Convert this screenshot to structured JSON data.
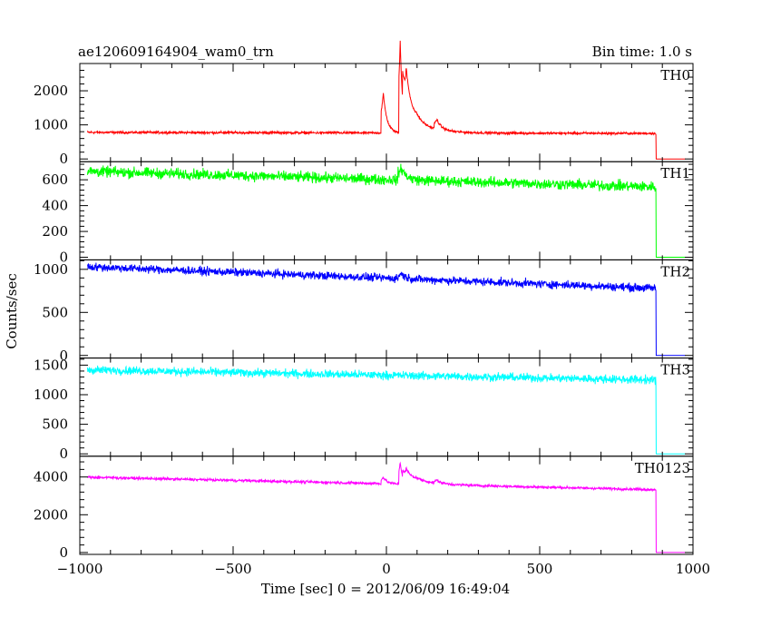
{
  "header": {
    "title": "ae120609164904_wam0_trn",
    "bin_time": "Bin time: 1.0 s"
  },
  "chart_data": {
    "type": "line",
    "xlabel": "Time [sec] 0 = 2012/06/09 16:49:04",
    "ylabel": "Counts/sec",
    "xlim": [
      -1000,
      1000
    ],
    "x_ticks": [
      -1000,
      -500,
      0,
      500,
      1000
    ],
    "x_tick_labels": [
      "−1000",
      "−500",
      "0",
      "500",
      "1000"
    ],
    "panels": [
      {
        "name": "TH0",
        "color": "#ff0000",
        "ylim": [
          -80,
          2800
        ],
        "y_ticks": [
          0,
          1000,
          2000
        ],
        "y_tick_labels": [
          "0",
          "1000",
          "2000"
        ],
        "baseline_start": 780,
        "baseline_end": 750,
        "noise": 30,
        "burst": [
          [
            -10,
            1150,
            12
          ],
          [
            45,
            2700,
            8
          ],
          [
            65,
            1500,
            20
          ],
          [
            100,
            300,
            60
          ],
          [
            165,
            280,
            15
          ]
        ],
        "cutoff": 880
      },
      {
        "name": "TH1",
        "color": "#00ff00",
        "ylim": [
          -20,
          740
        ],
        "y_ticks": [
          0,
          200,
          400,
          600
        ],
        "y_tick_labels": [
          "0",
          "200",
          "400",
          "600"
        ],
        "baseline_start": 665,
        "baseline_end": 545,
        "noise": 35,
        "burst": [
          [
            48,
            90,
            18
          ]
        ],
        "cutoff": 880
      },
      {
        "name": "TH2",
        "color": "#0000ff",
        "ylim": [
          -30,
          1110
        ],
        "y_ticks": [
          0,
          500,
          1000
        ],
        "y_tick_labels": [
          "0",
          "500",
          "1000"
        ],
        "baseline_start": 1030,
        "baseline_end": 780,
        "noise": 40,
        "burst": [
          [
            48,
            60,
            15
          ]
        ],
        "cutoff": 880
      },
      {
        "name": "TH3",
        "color": "#00ffff",
        "ylim": [
          -40,
          1620
        ],
        "y_ticks": [
          0,
          500,
          1000,
          1500
        ],
        "y_tick_labels": [
          "0",
          "500",
          "1000",
          "1500"
        ],
        "baseline_start": 1420,
        "baseline_end": 1250,
        "noise": 60,
        "burst": [],
        "cutoff": 880
      },
      {
        "name": "TH0123",
        "color": "#ff00ff",
        "ylim": [
          -100,
          5100
        ],
        "y_ticks": [
          0,
          2000,
          4000
        ],
        "y_tick_labels": [
          "0",
          "2000",
          "4000"
        ],
        "baseline_start": 3990,
        "baseline_end": 3330,
        "noise": 60,
        "burst": [
          [
            -10,
            350,
            12
          ],
          [
            45,
            1150,
            8
          ],
          [
            65,
            600,
            20
          ],
          [
            100,
            250,
            60
          ],
          [
            165,
            150,
            15
          ]
        ],
        "cutoff": 880
      }
    ]
  }
}
